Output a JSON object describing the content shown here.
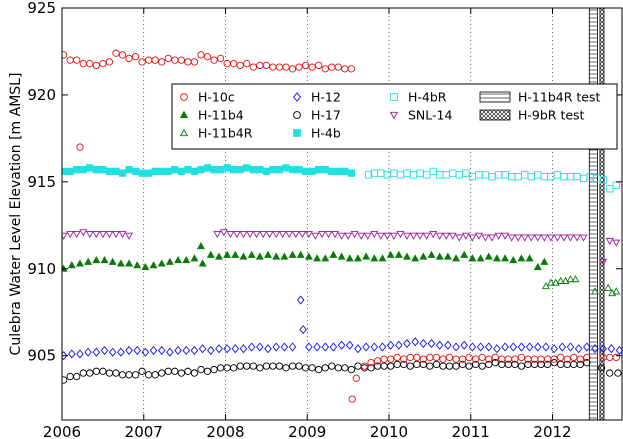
{
  "chart_data": {
    "type": "scatter",
    "title": "",
    "xlabel": "",
    "ylabel": "Culebra Water Level Elevation [m AMSL]",
    "xlim": [
      2006.0,
      2012.85
    ],
    "ylim": [
      901.3,
      925.0
    ],
    "xticks": [
      2006,
      2007,
      2008,
      2009,
      2010,
      2011,
      2012
    ],
    "yticks": [
      905,
      910,
      915,
      920,
      925
    ],
    "grid": "vertical-dashed",
    "legend_position": "upper-right",
    "series": [
      {
        "name": "H-10c",
        "marker": "circle-open",
        "color": "#e01010",
        "x": [
          2006.02,
          2006.1,
          2006.18,
          2006.26,
          2006.34,
          2006.42,
          2006.5,
          2006.58,
          2006.66,
          2006.74,
          2006.82,
          2006.9,
          2006.98,
          2007.06,
          2007.14,
          2007.22,
          2007.3,
          2007.38,
          2007.46,
          2007.54,
          2007.62,
          2007.7,
          2007.78,
          2007.86,
          2007.94,
          2008.02,
          2008.1,
          2008.18,
          2008.26,
          2008.34,
          2008.42,
          2008.5,
          2008.58,
          2008.66,
          2008.74,
          2008.82,
          2008.9,
          2008.98,
          2009.06,
          2009.14,
          2009.22,
          2009.3,
          2009.38,
          2009.46,
          2009.54,
          2006.22
        ],
        "y": [
          922.3,
          922.0,
          922.0,
          921.8,
          921.8,
          921.7,
          921.8,
          921.9,
          922.4,
          922.3,
          922.1,
          922.2,
          921.9,
          922.0,
          922.0,
          921.9,
          922.1,
          922.0,
          922.0,
          921.9,
          921.9,
          922.3,
          922.2,
          922.0,
          922.1,
          921.8,
          921.8,
          921.7,
          921.8,
          921.6,
          921.7,
          921.7,
          921.6,
          921.6,
          921.6,
          921.5,
          921.6,
          921.7,
          921.6,
          921.7,
          921.5,
          921.6,
          921.6,
          921.5,
          921.5,
          917.0
        ]
      },
      {
        "name": "H-11b4",
        "marker": "triangle-filled",
        "color": "#0a7a0a",
        "x": [
          2006.02,
          2006.12,
          2006.22,
          2006.32,
          2006.42,
          2006.52,
          2006.62,
          2006.72,
          2006.82,
          2006.92,
          2007.02,
          2007.12,
          2007.22,
          2007.32,
          2007.42,
          2007.52,
          2007.62,
          2007.72,
          2007.82,
          2007.92,
          2008.02,
          2008.12,
          2008.22,
          2008.32,
          2008.42,
          2008.52,
          2008.62,
          2008.72,
          2008.82,
          2008.92,
          2009.02,
          2009.12,
          2009.22,
          2009.32,
          2009.42,
          2009.52,
          2009.62,
          2009.72,
          2009.82,
          2009.92,
          2010.02,
          2010.12,
          2010.22,
          2010.32,
          2010.42,
          2010.52,
          2010.62,
          2010.72,
          2010.82,
          2010.92,
          2011.02,
          2011.12,
          2011.22,
          2011.32,
          2011.42,
          2011.52,
          2011.62,
          2011.72,
          2011.82,
          2011.9,
          2007.7
        ],
        "y": [
          910.0,
          910.2,
          910.3,
          910.4,
          910.5,
          910.5,
          910.4,
          910.3,
          910.3,
          910.2,
          910.1,
          910.2,
          910.3,
          910.4,
          910.5,
          910.5,
          910.6,
          910.3,
          910.8,
          910.7,
          910.8,
          910.8,
          910.7,
          910.8,
          910.7,
          910.8,
          910.7,
          910.7,
          910.8,
          910.8,
          910.7,
          910.6,
          910.6,
          910.8,
          910.7,
          910.6,
          910.6,
          910.7,
          910.6,
          910.6,
          910.8,
          910.8,
          910.7,
          910.6,
          910.7,
          910.8,
          910.7,
          910.7,
          910.6,
          910.8,
          910.6,
          910.6,
          910.7,
          910.6,
          910.6,
          910.5,
          910.6,
          910.6,
          910.1,
          910.4,
          911.3
        ]
      },
      {
        "name": "H-11b4R",
        "marker": "triangle-open",
        "color": "#0a7a0a",
        "x": [
          2011.92,
          2011.98,
          2012.04,
          2012.1,
          2012.16,
          2012.22,
          2012.28,
          2012.52,
          2012.68,
          2012.73,
          2012.78
        ],
        "y": [
          909.0,
          909.2,
          909.2,
          909.3,
          909.3,
          909.4,
          909.4,
          908.7,
          908.9,
          908.6,
          908.7
        ]
      },
      {
        "name": "H-12",
        "marker": "diamond-open",
        "color": "#1010e0",
        "x": [
          2006.02,
          2006.12,
          2006.22,
          2006.32,
          2006.42,
          2006.52,
          2006.62,
          2006.72,
          2006.82,
          2006.92,
          2007.02,
          2007.12,
          2007.22,
          2007.32,
          2007.42,
          2007.52,
          2007.62,
          2007.72,
          2007.82,
          2007.92,
          2008.02,
          2008.12,
          2008.22,
          2008.32,
          2008.42,
          2008.52,
          2008.62,
          2008.72,
          2008.82,
          2009.02,
          2009.12,
          2009.22,
          2009.32,
          2009.42,
          2009.52,
          2009.62,
          2009.72,
          2009.82,
          2009.92,
          2010.02,
          2010.12,
          2010.22,
          2010.32,
          2010.42,
          2010.52,
          2010.62,
          2010.72,
          2010.82,
          2010.92,
          2011.02,
          2011.12,
          2011.22,
          2011.32,
          2011.42,
          2011.52,
          2011.62,
          2011.72,
          2011.82,
          2011.92,
          2012.02,
          2012.12,
          2012.22,
          2012.32,
          2012.42,
          2012.52,
          2012.62,
          2012.72,
          2012.82,
          2008.92,
          2008.95
        ],
        "y": [
          905.0,
          905.1,
          905.1,
          905.2,
          905.2,
          905.3,
          905.2,
          905.2,
          905.3,
          905.3,
          905.2,
          905.3,
          905.3,
          905.2,
          905.3,
          905.3,
          905.3,
          905.4,
          905.3,
          905.4,
          905.4,
          905.4,
          905.4,
          905.5,
          905.5,
          905.4,
          905.5,
          905.5,
          905.5,
          905.5,
          905.5,
          905.5,
          905.5,
          905.6,
          905.6,
          905.4,
          905.5,
          905.5,
          905.5,
          905.6,
          905.6,
          905.7,
          905.8,
          905.7,
          905.7,
          905.6,
          905.6,
          905.5,
          905.6,
          905.5,
          905.5,
          905.5,
          905.4,
          905.5,
          905.5,
          905.5,
          905.5,
          905.5,
          905.5,
          905.4,
          905.5,
          905.5,
          905.4,
          905.5,
          905.4,
          905.4,
          905.4,
          905.3,
          908.2,
          906.5
        ]
      },
      {
        "name": "H-17",
        "marker": "circle-open",
        "color": "#000000",
        "x": [
          2006.02,
          2006.1,
          2006.18,
          2006.26,
          2006.34,
          2006.42,
          2006.5,
          2006.58,
          2006.66,
          2006.74,
          2006.82,
          2006.9,
          2006.98,
          2007.06,
          2007.14,
          2007.22,
          2007.3,
          2007.38,
          2007.46,
          2007.54,
          2007.62,
          2007.7,
          2007.78,
          2007.86,
          2007.94,
          2008.02,
          2008.1,
          2008.18,
          2008.26,
          2008.34,
          2008.42,
          2008.5,
          2008.58,
          2008.66,
          2008.74,
          2008.82,
          2008.9,
          2008.98,
          2009.06,
          2009.14,
          2009.22,
          2009.3,
          2009.38,
          2009.46,
          2009.54,
          2009.62,
          2009.7,
          2009.78,
          2009.86,
          2009.94,
          2010.02,
          2010.1,
          2010.18,
          2010.26,
          2010.34,
          2010.42,
          2010.5,
          2010.58,
          2010.66,
          2010.74,
          2010.82,
          2010.9,
          2010.98,
          2011.06,
          2011.14,
          2011.22,
          2011.3,
          2011.38,
          2011.46,
          2011.54,
          2011.62,
          2011.7,
          2011.78,
          2011.86,
          2011.94,
          2012.02,
          2012.1,
          2012.18,
          2012.26,
          2012.34,
          2012.42,
          2012.6,
          2012.7,
          2012.8
        ],
        "y": [
          903.6,
          903.8,
          903.8,
          904.0,
          904.0,
          904.1,
          904.1,
          904.0,
          904.0,
          903.9,
          903.9,
          903.9,
          904.1,
          903.9,
          903.9,
          904.0,
          904.1,
          904.1,
          904.0,
          904.1,
          904.0,
          904.2,
          904.1,
          904.2,
          904.3,
          904.3,
          904.3,
          904.4,
          904.4,
          904.4,
          904.3,
          904.4,
          904.4,
          904.4,
          904.3,
          904.4,
          904.4,
          904.3,
          904.3,
          904.2,
          904.3,
          904.4,
          904.3,
          904.3,
          904.2,
          904.4,
          904.3,
          904.3,
          904.4,
          904.4,
          904.4,
          904.5,
          904.5,
          904.4,
          904.5,
          904.5,
          904.4,
          904.5,
          904.4,
          904.4,
          904.4,
          904.5,
          904.4,
          904.5,
          904.4,
          904.5,
          904.6,
          904.5,
          904.5,
          904.5,
          904.4,
          904.5,
          904.5,
          904.5,
          904.5,
          904.6,
          904.5,
          904.5,
          904.5,
          904.5,
          904.6,
          904.3,
          904.0,
          904.0
        ]
      },
      {
        "name": "H-4bR",
        "marker": "square-open",
        "color": "#20e0e0",
        "x": [
          2009.75,
          2009.82,
          2009.9,
          2009.98,
          2010.06,
          2010.14,
          2010.22,
          2010.3,
          2010.38,
          2010.46,
          2010.54,
          2010.62,
          2010.7,
          2010.78,
          2010.86,
          2010.94,
          2011.02,
          2011.1,
          2011.18,
          2011.26,
          2011.34,
          2011.42,
          2011.5,
          2011.58,
          2011.66,
          2011.74,
          2011.82,
          2011.9,
          2011.98,
          2012.06,
          2012.14,
          2012.22,
          2012.3,
          2012.38,
          2012.46,
          2012.54,
          2012.62,
          2012.7,
          2012.78
        ],
        "y": [
          915.4,
          915.5,
          915.5,
          915.4,
          915.5,
          915.4,
          915.5,
          915.4,
          915.5,
          915.4,
          915.6,
          915.4,
          915.4,
          915.5,
          915.4,
          915.5,
          915.3,
          915.4,
          915.4,
          915.3,
          915.4,
          915.4,
          915.3,
          915.3,
          915.4,
          915.3,
          915.4,
          915.3,
          915.3,
          915.4,
          915.3,
          915.3,
          915.3,
          915.2,
          915.3,
          915.2,
          915.1,
          914.6,
          914.8
        ]
      },
      {
        "name": "SNL-14",
        "marker": "triangle-down-open",
        "color": "#9a1a9a",
        "x": [
          2006.02,
          2006.1,
          2006.18,
          2006.26,
          2006.34,
          2006.42,
          2006.5,
          2006.58,
          2006.66,
          2006.74,
          2006.82,
          2007.9,
          2007.98,
          2008.06,
          2008.14,
          2008.22,
          2008.3,
          2008.38,
          2008.46,
          2008.54,
          2008.62,
          2008.7,
          2008.78,
          2008.86,
          2008.94,
          2009.02,
          2009.1,
          2009.18,
          2009.26,
          2009.34,
          2009.42,
          2009.5,
          2009.58,
          2009.66,
          2009.74,
          2009.82,
          2009.9,
          2009.98,
          2010.06,
          2010.14,
          2010.22,
          2010.3,
          2010.38,
          2010.46,
          2010.54,
          2010.62,
          2010.7,
          2010.78,
          2010.86,
          2010.94,
          2011.02,
          2011.1,
          2011.18,
          2011.26,
          2011.34,
          2011.42,
          2011.5,
          2011.58,
          2011.66,
          2011.74,
          2011.82,
          2011.9,
          2011.98,
          2012.06,
          2012.14,
          2012.22,
          2012.3,
          2012.38,
          2012.62,
          2012.7,
          2012.78
        ],
        "y": [
          911.9,
          912.0,
          912.0,
          912.1,
          912.0,
          912.0,
          912.0,
          912.0,
          912.0,
          912.0,
          911.9,
          912.0,
          912.1,
          912.0,
          912.0,
          912.0,
          912.0,
          912.0,
          912.0,
          912.0,
          912.0,
          912.0,
          912.0,
          912.0,
          912.0,
          912.0,
          911.9,
          912.0,
          912.0,
          912.0,
          911.9,
          911.9,
          912.0,
          911.9,
          911.9,
          912.0,
          911.9,
          911.9,
          911.9,
          912.0,
          911.9,
          911.9,
          911.9,
          911.9,
          912.0,
          911.9,
          911.9,
          911.9,
          911.8,
          911.9,
          911.8,
          911.9,
          911.8,
          911.8,
          911.9,
          911.9,
          911.8,
          911.8,
          911.8,
          911.8,
          911.8,
          911.8,
          911.8,
          911.8,
          911.8,
          911.8,
          911.8,
          911.8,
          910.4,
          911.6,
          911.5
        ]
      },
      {
        "name": "H-4b",
        "marker": "square-filled",
        "color": "#20e0e0",
        "x": [
          2006.02,
          2006.1,
          2006.18,
          2006.26,
          2006.34,
          2006.42,
          2006.5,
          2006.58,
          2006.66,
          2006.74,
          2006.82,
          2006.9,
          2006.98,
          2007.06,
          2007.14,
          2007.22,
          2007.3,
          2007.38,
          2007.46,
          2007.54,
          2007.62,
          2007.7,
          2007.78,
          2007.86,
          2007.94,
          2008.02,
          2008.1,
          2008.18,
          2008.26,
          2008.34,
          2008.42,
          2008.5,
          2008.58,
          2008.66,
          2008.74,
          2008.82,
          2008.9,
          2008.98,
          2009.06,
          2009.14,
          2009.22,
          2009.3,
          2009.38,
          2009.46,
          2009.54
        ],
        "y": [
          915.6,
          915.6,
          915.7,
          915.7,
          915.8,
          915.7,
          915.7,
          915.6,
          915.6,
          915.5,
          915.7,
          915.6,
          915.5,
          915.5,
          915.6,
          915.6,
          915.6,
          915.7,
          915.6,
          915.7,
          915.6,
          915.7,
          915.8,
          915.7,
          915.7,
          915.8,
          915.7,
          915.7,
          915.8,
          915.7,
          915.7,
          915.6,
          915.7,
          915.7,
          915.8,
          915.7,
          915.7,
          915.6,
          915.6,
          915.7,
          915.7,
          915.6,
          915.6,
          915.6,
          915.5
        ]
      },
      {
        "name": "H-11b4R test",
        "marker": "band-hatch-lines",
        "color": "#000000",
        "x_range": [
          2012.45,
          2012.55
        ]
      },
      {
        "name": "H-9bR test",
        "marker": "band-hatch-cross",
        "color": "#000000",
        "x_range": [
          2012.58,
          2012.63
        ]
      }
    ],
    "outliers": [
      {
        "series": "H-10c",
        "x": 2009.55,
        "y": 902.5,
        "color": "#e01010",
        "marker": "circle-open"
      },
      {
        "series": "H-10c",
        "x": 2009.6,
        "y": 903.7,
        "color": "#e01010",
        "marker": "circle-open"
      },
      {
        "series": "H-10c",
        "x": 2009.7,
        "y": 904.4,
        "color": "#e01010",
        "marker": "circle-open"
      }
    ],
    "h10c_late": {
      "x": [
        2009.78,
        2009.86,
        2009.94,
        2010.02,
        2010.1,
        2010.18,
        2010.26,
        2010.34,
        2010.42,
        2010.5,
        2010.58,
        2010.66,
        2010.74,
        2010.82,
        2010.9,
        2010.98,
        2011.06,
        2011.14,
        2011.22,
        2011.3,
        2011.38,
        2011.46,
        2011.54,
        2011.62,
        2011.7,
        2011.78,
        2011.86,
        2011.94,
        2012.02,
        2012.1,
        2012.18,
        2012.26,
        2012.34,
        2012.42,
        2012.62,
        2012.7,
        2012.78
      ],
      "y": [
        904.6,
        904.7,
        904.8,
        904.8,
        904.9,
        904.8,
        904.9,
        904.9,
        904.8,
        904.9,
        904.9,
        904.8,
        904.9,
        904.8,
        904.8,
        904.9,
        904.8,
        904.9,
        904.8,
        904.9,
        904.8,
        904.8,
        904.8,
        904.9,
        904.8,
        904.8,
        904.8,
        904.8,
        904.8,
        904.9,
        904.8,
        904.9,
        904.8,
        904.9,
        904.9,
        904.9,
        904.9
      ]
    }
  }
}
